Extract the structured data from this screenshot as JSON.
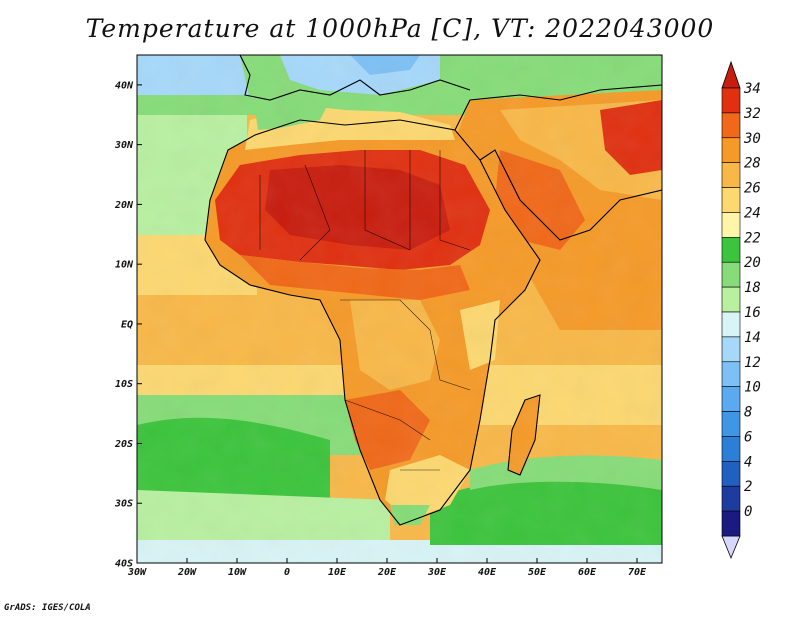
{
  "title": "Temperature at 1000hPa [C], VT: 2022043000",
  "credit": "GrADS: IGES/COLA",
  "map": {
    "lon_range": [
      -30,
      75
    ],
    "lat_range": [
      -40,
      45
    ],
    "lat_ticks": [
      "40N",
      "30N",
      "20N",
      "10N",
      "EQ",
      "10S",
      "20S",
      "30S",
      "40S"
    ],
    "lon_ticks": [
      "30W",
      "20W",
      "10W",
      "0",
      "10E",
      "20E",
      "30E",
      "40E",
      "50E",
      "60E",
      "70E"
    ]
  },
  "colorbar": {
    "levels": [
      "0",
      "2",
      "4",
      "6",
      "8",
      "10",
      "12",
      "14",
      "16",
      "18",
      "20",
      "22",
      "24",
      "26",
      "28",
      "30",
      "32",
      "34"
    ],
    "colors": [
      "#1a1a80",
      "#1e3ca0",
      "#2060c0",
      "#2c7fd6",
      "#3f96e6",
      "#5aaaf0",
      "#7dc0f5",
      "#a6d8fa",
      "#d8f4f6",
      "#b8f0a0",
      "#86dc78",
      "#3cc43c",
      "#fff5a8",
      "#fcd870",
      "#f8b848",
      "#f59a28",
      "#f06818",
      "#e03010",
      "#c81d0e"
    ],
    "under_color": "#d8d8ff"
  },
  "colors": {
    "ocean_warm": "#f8b848",
    "ocean_mild": "#86dc78",
    "ocean_cool": "#3cc43c",
    "ocean_cold": "#b8f0a0",
    "sahara": "#e03010",
    "africa_mid": "#f59a28",
    "europe": "#a6d8fa",
    "coast": "#000000"
  }
}
